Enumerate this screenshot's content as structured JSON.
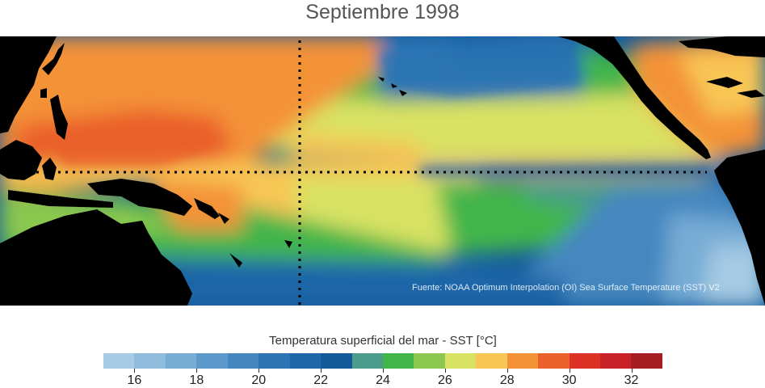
{
  "title": "Septiembre 1998",
  "source_note": "Fuente: NOAA Optimum Interpolation (OI) Sea Surface Temperature (SST) V2",
  "colorbar": {
    "title": "Temperatura superficial del mar - SST  [°C]",
    "min": 15,
    "max": 33,
    "colors": [
      "#a6cbe3",
      "#8fbcdc",
      "#77acd5",
      "#5d99cb",
      "#4487c0",
      "#2c74b4",
      "#1f66a8",
      "#135a99",
      "#4a9c8b",
      "#42b54c",
      "#8cc84f",
      "#d8e263",
      "#f8c655",
      "#f49237",
      "#ea612c",
      "#de3125",
      "#c82127",
      "#a61d24"
    ],
    "ticks": [
      "16",
      "18",
      "20",
      "22",
      "24",
      "26",
      "28",
      "30",
      "32"
    ]
  }
}
